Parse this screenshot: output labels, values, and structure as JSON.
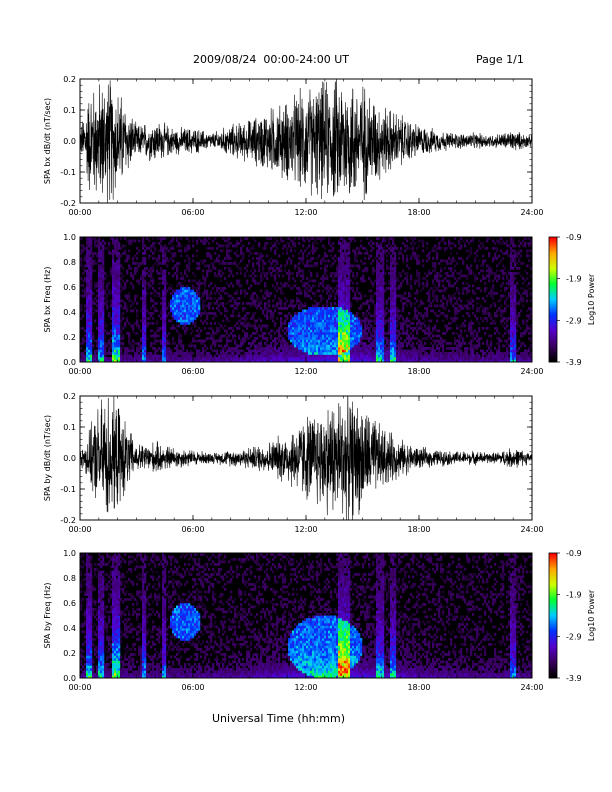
{
  "header": {
    "title": "2009/08/24  00:00-24:00 UT",
    "page": "Page 1/1"
  },
  "x_axis": {
    "title": "Universal Time (hh:mm)",
    "ticks": [
      "00:00",
      "06:00",
      "12:00",
      "18:00",
      "24:00"
    ]
  },
  "colorbar": {
    "title": "Log10 Power",
    "ticks": [
      "-0.9",
      "-1.9",
      "-2.9",
      "-3.9"
    ],
    "range": [
      -3.9,
      -0.9
    ],
    "colors": [
      "#000000",
      "#3a0060",
      "#5500cc",
      "#0033ff",
      "#00ccff",
      "#00ff33",
      "#ccff00",
      "#ffaa00",
      "#ff0000"
    ]
  },
  "chart_data": [
    {
      "type": "line",
      "ylabel": "SPA bx dB/dt (nT/sec)",
      "xlim": [
        "00:00",
        "24:00"
      ],
      "ylim": [
        -0.2,
        0.2
      ],
      "yticks": [
        "0.2",
        "0.1",
        "0.0",
        "-0.1",
        "-0.2"
      ],
      "color": "#000000",
      "envelope": {
        "hours": [
          0,
          0.5,
          1,
          1.5,
          2,
          3,
          4,
          5,
          6,
          7,
          8,
          9,
          10,
          11,
          12,
          13,
          14,
          15,
          16,
          17,
          18,
          19,
          20,
          21,
          22,
          23,
          24
        ],
        "amplitude": [
          0.04,
          0.2,
          0.22,
          0.25,
          0.2,
          0.06,
          0.08,
          0.05,
          0.05,
          0.03,
          0.06,
          0.08,
          0.12,
          0.15,
          0.2,
          0.22,
          0.25,
          0.22,
          0.14,
          0.1,
          0.06,
          0.04,
          0.03,
          0.03,
          0.025,
          0.04,
          0.02
        ]
      }
    },
    {
      "type": "heatmap",
      "ylabel": "SPA bx Freq (Hz)",
      "xlim": [
        "00:00",
        "24:00"
      ],
      "ylim": [
        0.0,
        1.0
      ],
      "yticks": [
        "1.0",
        "0.8",
        "0.6",
        "0.4",
        "0.2",
        "0.0"
      ],
      "zlabel": "Log10 Power",
      "zrange": [
        -3.9,
        -0.9
      ],
      "features": [
        {
          "kind": "vertical-streak",
          "hour": 0.5,
          "width": 0.15,
          "level": 0.55
        },
        {
          "kind": "vertical-streak",
          "hour": 1.1,
          "width": 0.15,
          "level": 0.5
        },
        {
          "kind": "vertical-streak",
          "hour": 1.9,
          "width": 0.2,
          "level": 0.65
        },
        {
          "kind": "vertical-streak",
          "hour": 3.4,
          "width": 0.1,
          "level": 0.4
        },
        {
          "kind": "vertical-streak",
          "hour": 4.5,
          "width": 0.1,
          "level": 0.4
        },
        {
          "kind": "blob",
          "hour": 5.6,
          "freq": 0.45,
          "rh": 0.8,
          "rf": 0.15,
          "level": 0.38
        },
        {
          "kind": "blob",
          "hour": 13.0,
          "freq": 0.25,
          "rh": 2.0,
          "rf": 0.2,
          "level": 0.35
        },
        {
          "kind": "vertical-streak",
          "hour": 14.0,
          "width": 0.35,
          "level": 0.6
        },
        {
          "kind": "vertical-streak",
          "hour": 15.9,
          "width": 0.2,
          "level": 0.45
        },
        {
          "kind": "vertical-streak",
          "hour": 16.6,
          "width": 0.15,
          "level": 0.45
        },
        {
          "kind": "vertical-streak",
          "hour": 23.0,
          "width": 0.2,
          "level": 0.4
        }
      ]
    },
    {
      "type": "line",
      "ylabel": "SPA by dB/dt (nT/sec)",
      "xlim": [
        "00:00",
        "24:00"
      ],
      "ylim": [
        -0.2,
        0.2
      ],
      "yticks": [
        "0.2",
        "0.1",
        "0.0",
        "-0.1",
        "-0.2"
      ],
      "color": "#000000",
      "envelope": {
        "hours": [
          0,
          0.5,
          1,
          1.5,
          2,
          3,
          4,
          5,
          6,
          7,
          8,
          9,
          10,
          11,
          12,
          13,
          14,
          15,
          16,
          17,
          18,
          19,
          20,
          21,
          22,
          23,
          24
        ],
        "amplitude": [
          0.02,
          0.1,
          0.2,
          0.25,
          0.2,
          0.05,
          0.06,
          0.04,
          0.03,
          0.02,
          0.03,
          0.04,
          0.06,
          0.1,
          0.16,
          0.2,
          0.25,
          0.2,
          0.12,
          0.07,
          0.04,
          0.03,
          0.025,
          0.025,
          0.02,
          0.04,
          0.02
        ]
      }
    },
    {
      "type": "heatmap",
      "ylabel": "SPA by Freq (Hz)",
      "xlim": [
        "00:00",
        "24:00"
      ],
      "ylim": [
        0.0,
        1.0
      ],
      "yticks": [
        "1.0",
        "0.8",
        "0.6",
        "0.4",
        "0.2",
        "0.0"
      ],
      "zlabel": "Log10 Power",
      "zrange": [
        -3.9,
        -0.9
      ],
      "features": [
        {
          "kind": "vertical-streak",
          "hour": 0.5,
          "width": 0.15,
          "level": 0.55
        },
        {
          "kind": "vertical-streak",
          "hour": 1.1,
          "width": 0.15,
          "level": 0.5
        },
        {
          "kind": "vertical-streak",
          "hour": 1.9,
          "width": 0.2,
          "level": 0.7
        },
        {
          "kind": "vertical-streak",
          "hour": 3.4,
          "width": 0.1,
          "level": 0.45
        },
        {
          "kind": "vertical-streak",
          "hour": 4.5,
          "width": 0.1,
          "level": 0.4
        },
        {
          "kind": "blob",
          "hour": 5.6,
          "freq": 0.45,
          "rh": 0.8,
          "rf": 0.15,
          "level": 0.38
        },
        {
          "kind": "blob",
          "hour": 13.0,
          "freq": 0.25,
          "rh": 2.0,
          "rf": 0.25,
          "level": 0.38
        },
        {
          "kind": "vertical-streak",
          "hour": 14.0,
          "width": 0.35,
          "level": 0.65
        },
        {
          "kind": "vertical-streak",
          "hour": 15.9,
          "width": 0.2,
          "level": 0.45
        },
        {
          "kind": "vertical-streak",
          "hour": 16.6,
          "width": 0.15,
          "level": 0.45
        },
        {
          "kind": "vertical-streak",
          "hour": 23.0,
          "width": 0.2,
          "level": 0.4
        }
      ]
    }
  ]
}
